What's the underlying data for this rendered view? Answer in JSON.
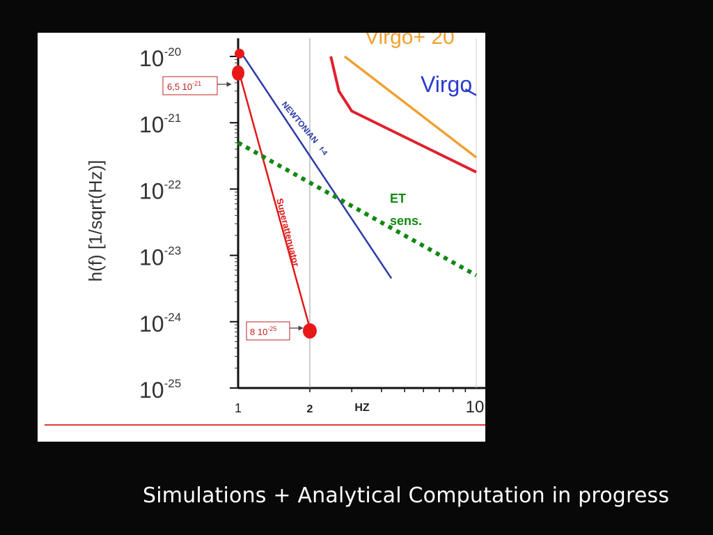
{
  "caption": "Simulations + Analytical Computation in progress",
  "chart_data": {
    "type": "line",
    "ylabel": "h(f) [1/sqrt(Hz)]",
    "xlabel": "HZ",
    "x_scale": "log",
    "y_scale": "log",
    "xlim": [
      1,
      10
    ],
    "ylim": [
      1e-25,
      1e-20
    ],
    "y_ticks": [
      {
        "exp": -20,
        "base": "10",
        "sup": "-20"
      },
      {
        "exp": -21,
        "base": "10",
        "sup": "-21"
      },
      {
        "exp": -22,
        "base": "10",
        "sup": "-22"
      },
      {
        "exp": -23,
        "base": "10",
        "sup": "-23"
      },
      {
        "exp": -24,
        "base": "10",
        "sup": "-24"
      },
      {
        "exp": -25,
        "base": "10",
        "sup": "-25"
      }
    ],
    "x_ticks": [
      {
        "value": 1,
        "label": "1"
      },
      {
        "value": 2,
        "label": "2"
      },
      {
        "value": 10,
        "label": "10"
      }
    ],
    "series": [
      {
        "key": "newtonian",
        "name": "NEWTONIAN",
        "name_sup": "f-4",
        "color": "#2b3aa8",
        "x": [
          1.02,
          4.4
        ],
        "y": [
          1.2e-20,
          4.5e-24
        ]
      },
      {
        "key": "superattenuator",
        "name": "Superattenuator",
        "color": "#e01818",
        "x": [
          1.0,
          2.0
        ],
        "y": [
          6.5e-21,
          8e-25
        ]
      },
      {
        "key": "et",
        "name": "ET sens.",
        "name_lines": [
          "ET",
          "sens."
        ],
        "color": "#118811",
        "style": "dotted",
        "x": [
          1.0,
          10.0
        ],
        "y": [
          5e-22,
          5e-24
        ]
      },
      {
        "key": "virgo_plus",
        "name": "Virgo+ 20",
        "color": "#f0a030",
        "x": [
          2.8,
          10.0
        ],
        "y": [
          1e-20,
          3e-22
        ]
      },
      {
        "key": "virgo",
        "name": "Virgo",
        "color": "#2a3ad0",
        "x": [
          9.0,
          10.0
        ],
        "y": [
          3.2e-21,
          2.6e-21
        ]
      },
      {
        "key": "red_curve",
        "name": "",
        "color": "#e0202e",
        "x": [
          2.45,
          2.65,
          3.0,
          10.0
        ],
        "y": [
          1e-20,
          3e-21,
          1.5e-21,
          1.8e-22
        ]
      }
    ],
    "annotations": [
      {
        "key": "top",
        "x": 1.0,
        "y": 1.1e-20,
        "text": ""
      },
      {
        "key": "mid",
        "x": 1.0,
        "y": 6.5e-21,
        "text_base": "6,5 10",
        "text_sup": "-21"
      },
      {
        "key": "bottom",
        "x": 2.0,
        "y": 8e-25,
        "text_base": "8 10",
        "text_sup": "-25"
      }
    ],
    "grid": "vertical line at x=2",
    "legend": "inline labels"
  }
}
